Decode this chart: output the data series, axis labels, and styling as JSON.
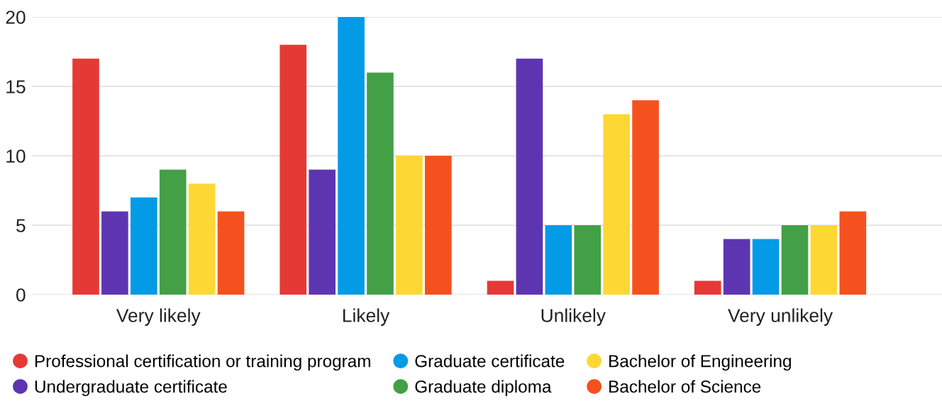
{
  "chart_data": {
    "type": "bar",
    "categories": [
      "Very likely",
      "Likely",
      "Unlikely",
      "Very unlikely"
    ],
    "series": [
      {
        "name": "Professional certification or training program",
        "color": "#e53935",
        "values": [
          17,
          18,
          1,
          1
        ]
      },
      {
        "name": "Undergraduate certificate",
        "color": "#5e35b1",
        "values": [
          6,
          9,
          17,
          4
        ]
      },
      {
        "name": "Graduate certificate",
        "color": "#039be5",
        "values": [
          7,
          20,
          5,
          4
        ]
      },
      {
        "name": "Graduate diploma",
        "color": "#43a047",
        "values": [
          9,
          16,
          5,
          5
        ]
      },
      {
        "name": "Bachelor of Engineering",
        "color": "#fdd835",
        "values": [
          8,
          10,
          13,
          5
        ]
      },
      {
        "name": "Bachelor of Science",
        "color": "#f4511e",
        "values": [
          6,
          10,
          14,
          6
        ]
      }
    ],
    "ylim": [
      0,
      20
    ],
    "yticks": [
      0,
      5,
      10,
      15,
      20
    ],
    "grid": "y",
    "legend": "bottom"
  }
}
